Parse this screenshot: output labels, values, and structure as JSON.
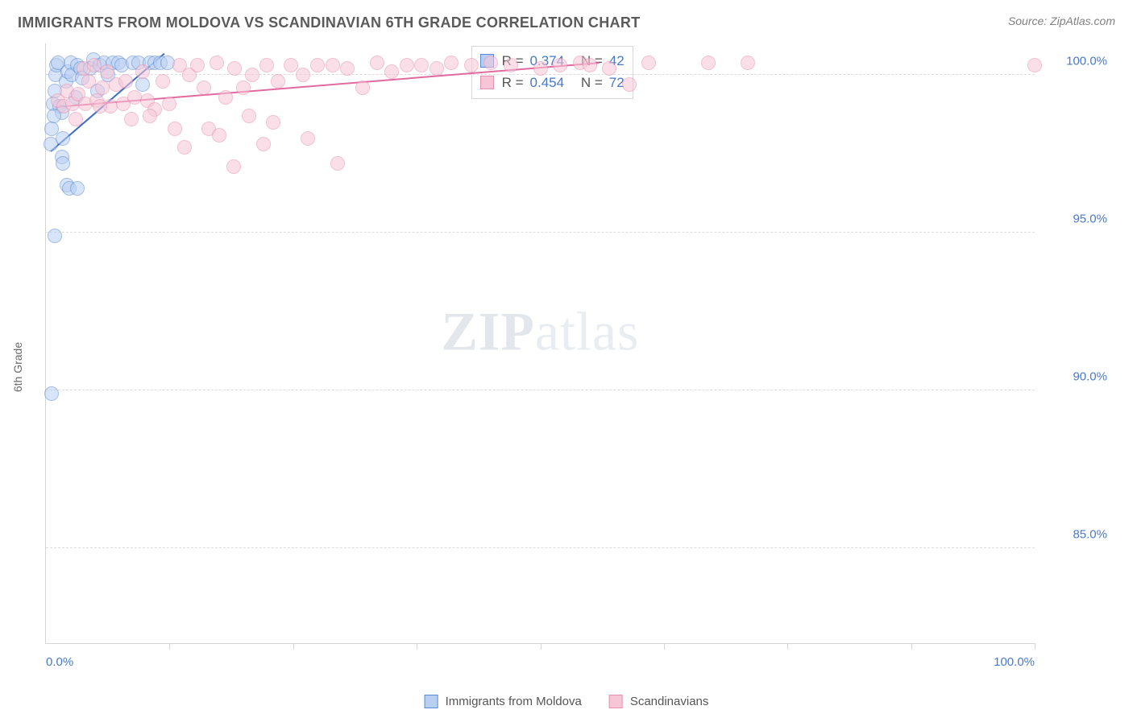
{
  "header": {
    "title": "IMMIGRANTS FROM MOLDOVA VS SCANDINAVIAN 6TH GRADE CORRELATION CHART",
    "source": "Source: ZipAtlas.com"
  },
  "chart": {
    "type": "scatter",
    "y_axis_label": "6th Grade",
    "watermark_a": "ZIP",
    "watermark_b": "atlas",
    "background_color": "#ffffff",
    "grid_color": "#dcdcdc",
    "axis_color": "#d4d4d4",
    "tick_label_color": "#4878c8",
    "xlim": [
      0,
      100
    ],
    "ylim": [
      82,
      101
    ],
    "y_ticks": [
      {
        "v": 100,
        "label": "100.0%"
      },
      {
        "v": 95,
        "label": "95.0%"
      },
      {
        "v": 90,
        "label": "90.0%"
      },
      {
        "v": 85,
        "label": "85.0%"
      }
    ],
    "x_ticks_minor": [
      12.5,
      25,
      37.5,
      50,
      62.5,
      75,
      87.5,
      100
    ],
    "x_ticks_label": [
      {
        "v": 0,
        "label": "0.0%"
      },
      {
        "v": 100,
        "label": "100.0%"
      }
    ],
    "marker_radius": 9,
    "marker_border_width": 1.2,
    "series": [
      {
        "id": "moldova",
        "name": "Immigrants from Moldova",
        "fill": "#b9cff1",
        "stroke": "#5a8ad6",
        "fill_opacity": 0.55,
        "trend": {
          "x1": 0.5,
          "y1": 97.6,
          "x2": 12,
          "y2": 100.7,
          "color": "#3d6cc0"
        },
        "stats": {
          "R": "0.374",
          "N": "42"
        },
        "points": [
          [
            0.5,
            97.8
          ],
          [
            0.6,
            98.3
          ],
          [
            0.7,
            99.1
          ],
          [
            0.9,
            99.5
          ],
          [
            1.0,
            100.0
          ],
          [
            1.1,
            100.3
          ],
          [
            1.2,
            100.4
          ],
          [
            1.4,
            99.0
          ],
          [
            1.6,
            97.4
          ],
          [
            1.7,
            98.0
          ],
          [
            1.7,
            97.2
          ],
          [
            2.0,
            99.8
          ],
          [
            2.2,
            100.1
          ],
          [
            2.5,
            100.4
          ],
          [
            2.6,
            100.0
          ],
          [
            3.0,
            99.3
          ],
          [
            3.2,
            100.3
          ],
          [
            3.5,
            100.2
          ],
          [
            3.7,
            99.9
          ],
          [
            4.5,
            100.2
          ],
          [
            4.8,
            100.5
          ],
          [
            5.2,
            99.5
          ],
          [
            5.5,
            100.3
          ],
          [
            5.9,
            100.4
          ],
          [
            6.3,
            100.0
          ],
          [
            6.8,
            100.4
          ],
          [
            7.3,
            100.4
          ],
          [
            7.7,
            100.3
          ],
          [
            8.8,
            100.4
          ],
          [
            9.4,
            100.4
          ],
          [
            9.8,
            99.7
          ],
          [
            10.5,
            100.4
          ],
          [
            11.0,
            100.4
          ],
          [
            11.6,
            100.4
          ],
          [
            12.3,
            100.4
          ],
          [
            2.1,
            96.5
          ],
          [
            2.4,
            96.4
          ],
          [
            3.2,
            96.4
          ],
          [
            0.9,
            94.9
          ],
          [
            0.6,
            89.9
          ],
          [
            1.6,
            98.8
          ],
          [
            0.8,
            98.7
          ]
        ]
      },
      {
        "id": "scandinavian",
        "name": "Scandinavians",
        "fill": "#f6c6d6",
        "stroke": "#e78fb0",
        "fill_opacity": 0.55,
        "trend": {
          "x1": 1,
          "y1": 99.0,
          "x2": 56,
          "y2": 100.4,
          "color": "#e26aa0"
        },
        "stats": {
          "R": "0.454",
          "N": "72"
        },
        "points": [
          [
            1.2,
            99.2
          ],
          [
            1.8,
            99.0
          ],
          [
            2.1,
            99.5
          ],
          [
            2.7,
            99.1
          ],
          [
            3.0,
            98.6
          ],
          [
            3.3,
            99.4
          ],
          [
            3.8,
            100.2
          ],
          [
            4.0,
            99.1
          ],
          [
            4.3,
            99.8
          ],
          [
            4.9,
            100.3
          ],
          [
            5.1,
            99.2
          ],
          [
            5.7,
            99.6
          ],
          [
            6.2,
            100.1
          ],
          [
            6.5,
            99.0
          ],
          [
            7.1,
            99.7
          ],
          [
            7.8,
            99.1
          ],
          [
            8.1,
            99.8
          ],
          [
            8.6,
            98.6
          ],
          [
            9.0,
            99.3
          ],
          [
            9.8,
            100.1
          ],
          [
            10.3,
            99.2
          ],
          [
            11.0,
            98.9
          ],
          [
            11.8,
            99.8
          ],
          [
            12.5,
            99.1
          ],
          [
            13.5,
            100.3
          ],
          [
            14.5,
            100.0
          ],
          [
            15.3,
            100.3
          ],
          [
            16.0,
            99.6
          ],
          [
            17.3,
            100.4
          ],
          [
            18.2,
            99.3
          ],
          [
            19.1,
            100.2
          ],
          [
            20.0,
            99.6
          ],
          [
            20.9,
            100.0
          ],
          [
            22.3,
            100.3
          ],
          [
            23.5,
            99.8
          ],
          [
            24.8,
            100.3
          ],
          [
            26.0,
            100.0
          ],
          [
            27.5,
            100.3
          ],
          [
            29.0,
            100.3
          ],
          [
            30.5,
            100.2
          ],
          [
            32.0,
            99.6
          ],
          [
            33.5,
            100.4
          ],
          [
            35.0,
            100.1
          ],
          [
            36.5,
            100.3
          ],
          [
            38.0,
            100.3
          ],
          [
            39.5,
            100.2
          ],
          [
            41.0,
            100.4
          ],
          [
            43.0,
            100.3
          ],
          [
            45.0,
            100.4
          ],
          [
            47.0,
            100.3
          ],
          [
            50.0,
            100.2
          ],
          [
            52.0,
            100.3
          ],
          [
            54.0,
            100.4
          ],
          [
            67.0,
            100.4
          ],
          [
            71.0,
            100.4
          ],
          [
            100.0,
            100.3
          ],
          [
            10.5,
            98.7
          ],
          [
            13.0,
            98.3
          ],
          [
            14.0,
            97.7
          ],
          [
            16.5,
            98.3
          ],
          [
            17.5,
            98.1
          ],
          [
            19.0,
            97.1
          ],
          [
            20.5,
            98.7
          ],
          [
            22.0,
            97.8
          ],
          [
            23.0,
            98.5
          ],
          [
            26.5,
            98.0
          ],
          [
            29.5,
            97.2
          ],
          [
            5.5,
            99.0
          ],
          [
            55.0,
            100.3
          ],
          [
            57.0,
            100.2
          ],
          [
            59.0,
            99.7
          ],
          [
            61.0,
            100.4
          ]
        ]
      }
    ]
  },
  "legend_stats": {
    "r_label": "R =",
    "n_label": "N ="
  },
  "bottom_legend": {
    "items": [
      {
        "series": "moldova"
      },
      {
        "series": "scandinavian"
      }
    ]
  }
}
